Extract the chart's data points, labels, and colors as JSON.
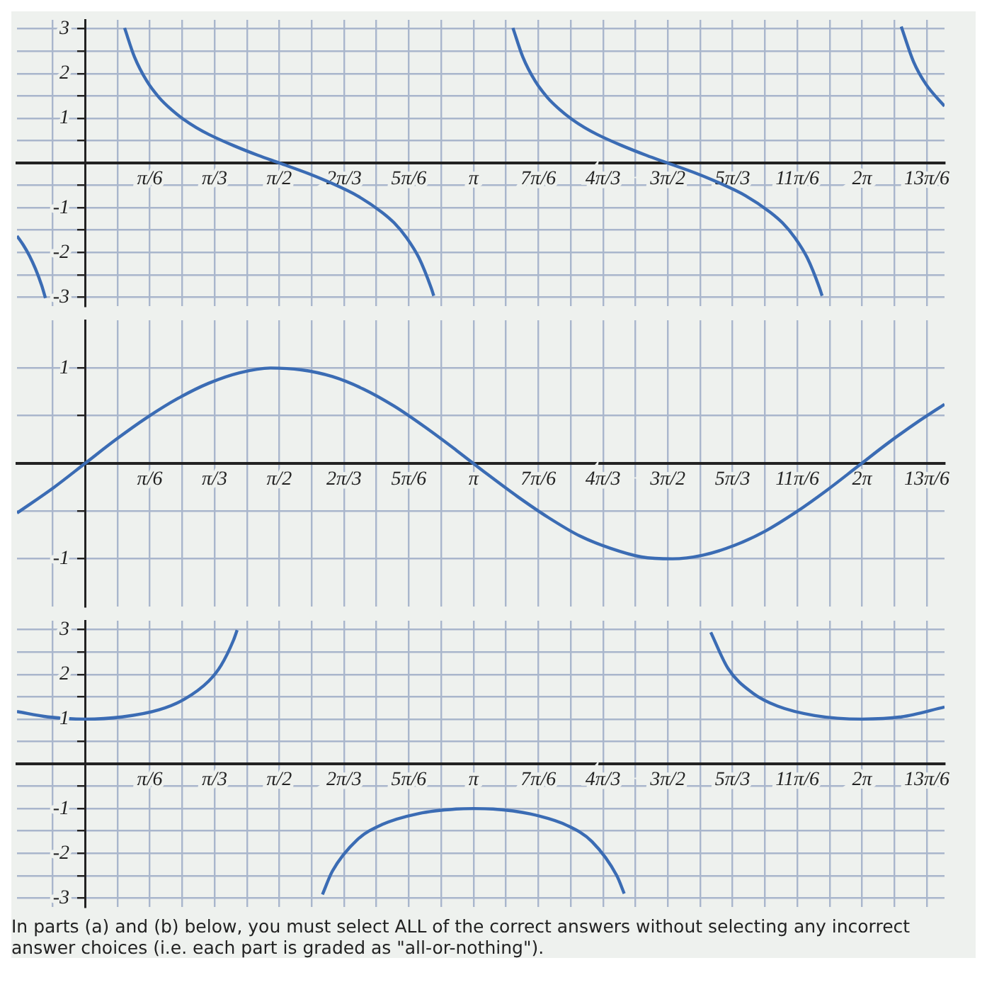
{
  "chart_data": [
    {
      "type": "line",
      "marker": "none",
      "grid": true,
      "xlim": [
        -0.55,
        6.95
      ],
      "ylim": [
        -3.2,
        3.2
      ],
      "xticks": [
        {
          "value": -0.2618,
          "label": null
        },
        {
          "value": 0,
          "label": null
        },
        {
          "value": 0.2618,
          "label": null
        },
        {
          "value": 0.5236,
          "label": "π/6"
        },
        {
          "value": 0.7854,
          "label": null
        },
        {
          "value": 1.0472,
          "label": "π/3"
        },
        {
          "value": 1.309,
          "label": null
        },
        {
          "value": 1.5708,
          "label": "π/2"
        },
        {
          "value": 1.8326,
          "label": null
        },
        {
          "value": 2.0944,
          "label": "2π/3"
        },
        {
          "value": 2.3562,
          "label": null
        },
        {
          "value": 2.618,
          "label": "5π/6"
        },
        {
          "value": 2.8798,
          "label": null
        },
        {
          "value": 3.1416,
          "label": "π"
        },
        {
          "value": 3.4034,
          "label": null
        },
        {
          "value": 3.6652,
          "label": "7π/6"
        },
        {
          "value": 3.927,
          "label": null
        },
        {
          "value": 4.1888,
          "label": "4π/3"
        },
        {
          "value": 4.4506,
          "label": null
        },
        {
          "value": 4.7124,
          "label": "3π/2"
        },
        {
          "value": 4.9742,
          "label": null
        },
        {
          "value": 5.236,
          "label": "5π/3"
        },
        {
          "value": 5.4978,
          "label": null
        },
        {
          "value": 5.7596,
          "label": "11π/6"
        },
        {
          "value": 6.0214,
          "label": null
        },
        {
          "value": 6.2832,
          "label": "2π"
        },
        {
          "value": 6.545,
          "label": null
        },
        {
          "value": 6.8068,
          "label": "13π/6"
        }
      ],
      "yticks": [
        -3,
        {
          "value": -2.5,
          "label": null
        },
        -2,
        {
          "value": -1.5,
          "label": null
        },
        -1,
        {
          "value": -0.5,
          "label": null
        },
        {
          "value": 0,
          "label": null
        },
        {
          "value": 0.5,
          "label": null
        },
        1,
        {
          "value": 1.5,
          "label": null
        },
        2,
        {
          "value": 2.5,
          "label": null
        },
        3
      ],
      "series": [
        {
          "color": "#3b6cb4",
          "x": [
            -0.55,
            -0.5,
            -0.45,
            -0.4,
            -0.35,
            -0.32
          ],
          "values": [
            -1.63,
            -1.83,
            -2.07,
            -2.37,
            -2.74,
            -3.02
          ]
        },
        {
          "color": "#3b6cb4",
          "x": [
            0.32,
            0.4,
            0.5,
            0.6,
            0.7,
            0.8,
            0.9,
            1.0,
            1.2,
            1.4,
            1.5708,
            1.8,
            2.0,
            2.2,
            2.4,
            2.5,
            2.6,
            2.7,
            2.8,
            2.82
          ],
          "values": [
            3.02,
            2.37,
            1.83,
            1.46,
            1.19,
            0.97,
            0.79,
            0.64,
            0.39,
            0.17,
            0,
            -0.23,
            -0.46,
            -0.73,
            -1.1,
            -1.34,
            -1.67,
            -2.12,
            -2.8,
            -2.97
          ]
        },
        {
          "color": "#3b6cb4",
          "x": [
            3.46,
            3.54,
            3.64,
            3.74,
            3.84,
            3.94,
            4.04,
            4.14,
            4.34,
            4.54,
            4.71,
            4.94,
            5.14,
            5.34,
            5.54,
            5.64,
            5.74,
            5.84,
            5.94,
            5.96
          ],
          "values": [
            3.02,
            2.37,
            1.83,
            1.46,
            1.19,
            0.97,
            0.79,
            0.64,
            0.39,
            0.17,
            0,
            -0.23,
            -0.46,
            -0.73,
            -1.1,
            -1.34,
            -1.67,
            -2.12,
            -2.8,
            -2.97
          ]
        },
        {
          "color": "#3b6cb4",
          "x": [
            6.6,
            6.7,
            6.8,
            6.95
          ],
          "values": [
            3.05,
            2.26,
            1.76,
            1.27
          ]
        }
      ]
    },
    {
      "type": "line",
      "marker": "none",
      "grid": true,
      "xlim": [
        -0.55,
        6.95
      ],
      "ylim": [
        -1.5,
        1.5
      ],
      "xticks": [
        {
          "value": -0.2618,
          "label": null
        },
        {
          "value": 0,
          "label": null
        },
        {
          "value": 0.2618,
          "label": null
        },
        {
          "value": 0.5236,
          "label": "π/6"
        },
        {
          "value": 0.7854,
          "label": null
        },
        {
          "value": 1.0472,
          "label": "π/3"
        },
        {
          "value": 1.309,
          "label": null
        },
        {
          "value": 1.5708,
          "label": "π/2"
        },
        {
          "value": 1.8326,
          "label": null
        },
        {
          "value": 2.0944,
          "label": "2π/3"
        },
        {
          "value": 2.3562,
          "label": null
        },
        {
          "value": 2.618,
          "label": "5π/6"
        },
        {
          "value": 2.8798,
          "label": null
        },
        {
          "value": 3.1416,
          "label": "π"
        },
        {
          "value": 3.4034,
          "label": null
        },
        {
          "value": 3.6652,
          "label": "7π/6"
        },
        {
          "value": 3.927,
          "label": null
        },
        {
          "value": 4.1888,
          "label": "4π/3"
        },
        {
          "value": 4.4506,
          "label": null
        },
        {
          "value": 4.7124,
          "label": "3π/2"
        },
        {
          "value": 4.9742,
          "label": null
        },
        {
          "value": 5.236,
          "label": "5π/3"
        },
        {
          "value": 5.4978,
          "label": null
        },
        {
          "value": 5.7596,
          "label": "11π/6"
        },
        {
          "value": 6.0214,
          "label": null
        },
        {
          "value": 6.2832,
          "label": "2π"
        },
        {
          "value": 6.545,
          "label": null
        },
        {
          "value": 6.8068,
          "label": "13π/6"
        }
      ],
      "yticks": [
        -1,
        {
          "value": -0.5,
          "label": null
        },
        {
          "value": 0,
          "label": null
        },
        {
          "value": 0.5,
          "label": null
        },
        1
      ],
      "series": [
        {
          "color": "#3b6cb4",
          "x": [
            -0.55,
            -0.25,
            0,
            0.25,
            0.5,
            0.75,
            1.0,
            1.25,
            1.5,
            1.75,
            2.0,
            2.25,
            2.5,
            2.75,
            3.0,
            3.25,
            3.5,
            3.75,
            4.0,
            4.25,
            4.5,
            4.75,
            5.0,
            5.25,
            5.5,
            5.75,
            6.0,
            6.25,
            6.5,
            6.75,
            6.95
          ],
          "values": [
            -0.52,
            -0.25,
            0,
            0.25,
            0.48,
            0.68,
            0.84,
            0.95,
            1.0,
            0.98,
            0.91,
            0.78,
            0.6,
            0.38,
            0.14,
            -0.11,
            -0.35,
            -0.57,
            -0.76,
            -0.89,
            -0.98,
            -1.0,
            -0.96,
            -0.86,
            -0.71,
            -0.51,
            -0.28,
            -0.03,
            0.22,
            0.45,
            0.62
          ]
        }
      ]
    },
    {
      "type": "line",
      "marker": "none",
      "grid": true,
      "xlim": [
        -0.55,
        6.95
      ],
      "ylim": [
        -3.2,
        3.2
      ],
      "xticks": [
        {
          "value": -0.2618,
          "label": null
        },
        {
          "value": 0,
          "label": null
        },
        {
          "value": 0.2618,
          "label": null
        },
        {
          "value": 0.5236,
          "label": "π/6"
        },
        {
          "value": 0.7854,
          "label": null
        },
        {
          "value": 1.0472,
          "label": "π/3"
        },
        {
          "value": 1.309,
          "label": null
        },
        {
          "value": 1.5708,
          "label": "π/2"
        },
        {
          "value": 1.8326,
          "label": null
        },
        {
          "value": 2.0944,
          "label": "2π/3"
        },
        {
          "value": 2.3562,
          "label": null
        },
        {
          "value": 2.618,
          "label": "5π/6"
        },
        {
          "value": 2.8798,
          "label": null
        },
        {
          "value": 3.1416,
          "label": "π"
        },
        {
          "value": 3.4034,
          "label": null
        },
        {
          "value": 3.6652,
          "label": "7π/6"
        },
        {
          "value": 3.927,
          "label": null
        },
        {
          "value": 4.1888,
          "label": "4π/3"
        },
        {
          "value": 4.4506,
          "label": null
        },
        {
          "value": 4.7124,
          "label": "3π/2"
        },
        {
          "value": 4.9742,
          "label": null
        },
        {
          "value": 5.236,
          "label": "5π/3"
        },
        {
          "value": 5.4978,
          "label": null
        },
        {
          "value": 5.7596,
          "label": "11π/6"
        },
        {
          "value": 6.0214,
          "label": null
        },
        {
          "value": 6.2832,
          "label": "2π"
        },
        {
          "value": 6.545,
          "label": null
        },
        {
          "value": 6.8068,
          "label": "13π/6"
        }
      ],
      "yticks": [
        -3,
        {
          "value": -2.5,
          "label": null
        },
        -2,
        {
          "value": -1.5,
          "label": null
        },
        -1,
        {
          "value": -0.5,
          "label": null
        },
        {
          "value": 0,
          "label": null
        },
        {
          "value": 0.5,
          "label": null
        },
        1,
        {
          "value": 1.5,
          "label": null
        },
        2,
        {
          "value": 2.5,
          "label": null
        },
        3
      ],
      "series": [
        {
          "color": "#3b6cb4",
          "x": [
            -0.55,
            -0.3,
            0,
            0.3,
            0.6,
            0.8,
            1.0,
            1.1,
            1.2,
            1.23
          ],
          "values": [
            1.17,
            1.05,
            1,
            1.05,
            1.21,
            1.44,
            1.85,
            2.2,
            2.76,
            2.99
          ]
        },
        {
          "color": "#3b6cb4",
          "x": [
            1.92,
            2.0,
            2.2,
            2.4,
            2.7,
            3.0,
            3.1416,
            3.3,
            3.6,
            3.9,
            4.1,
            4.3,
            4.36
          ],
          "values": [
            -2.92,
            -2.4,
            -1.7,
            -1.36,
            -1.11,
            -1.01,
            -1,
            -1.01,
            -1.12,
            -1.38,
            -1.74,
            -2.5,
            -2.9
          ]
        },
        {
          "color": "#3b6cb4",
          "x": [
            5.06,
            5.2,
            5.4,
            5.6,
            5.9,
            6.2832,
            6.6,
            6.95
          ],
          "values": [
            2.94,
            2.13,
            1.58,
            1.29,
            1.08,
            1,
            1.05,
            1.27
          ]
        }
      ],
      "annotations": [
        "In parts (a) and (b) below, you must select ALL of the correct answers without selecting any incorrect answer choices (i.e. each part is graded as \"all-or-nothing\")."
      ]
    }
  ]
}
